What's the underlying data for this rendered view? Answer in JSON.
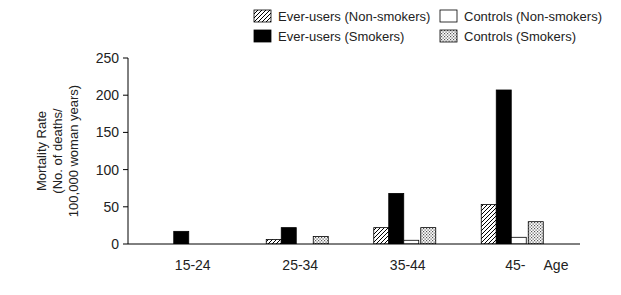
{
  "chart_data": {
    "type": "bar",
    "y_label": [
      "Mortality Rate",
      "(No. of deaths/",
      "100,000 woman years)"
    ],
    "x_label": "Age",
    "categories": [
      "15-24",
      "25-34",
      "35-44",
      "45-"
    ],
    "series": [
      {
        "name": "Ever-users (Non-smokers)",
        "color": "#000000",
        "values": [
          0,
          6,
          22,
          53
        ]
      },
      {
        "name": "Ever-users (Smokers)",
        "color": "#000000",
        "values": [
          17,
          22,
          68,
          207
        ]
      },
      {
        "name": "Controls (Non-smokers)",
        "color": "#ffffff",
        "values": [
          0,
          0,
          5,
          9
        ]
      },
      {
        "name": "Controls (Smokers)",
        "color": "#555555",
        "values": [
          0,
          10,
          22,
          30
        ]
      }
    ],
    "ylim": [
      0,
      250
    ],
    "yticks": [
      0,
      50,
      100,
      150,
      200,
      250
    ],
    "grid": false,
    "legend": "top"
  }
}
